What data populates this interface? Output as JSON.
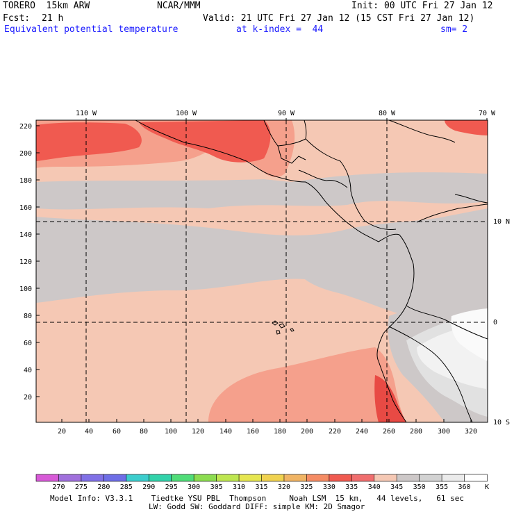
{
  "header": {
    "model": "TORERO  15km ARW",
    "center": "NCAR/MMM",
    "init": "Init: 00 UTC Fri 27 Jan 12",
    "fcst_label": "Fcst:",
    "fcst_value": "21 h",
    "valid": "Valid: 21 UTC Fri 27 Jan 12 (15 CST Fri 27 Jan 12)",
    "field": "Equivalent potential temperature",
    "level": "at k-index =  44",
    "smooth": "sm= 2"
  },
  "map": {
    "top_lon_labels": [
      "110 W",
      "100 W",
      "90 W",
      "80 W",
      "70 W"
    ],
    "right_lat_labels": [
      "10 N",
      "0",
      "10 S"
    ],
    "y_ticks": [
      "220",
      "200",
      "180",
      "160",
      "140",
      "120",
      "100",
      "80",
      "60",
      "40",
      "20"
    ],
    "x_ticks": [
      "20",
      "40",
      "60",
      "80",
      "100",
      "120",
      "140",
      "160",
      "180",
      "200",
      "220",
      "240",
      "260",
      "280",
      "300",
      "320"
    ]
  },
  "legend": {
    "values": [
      "270",
      "275",
      "280",
      "285",
      "290",
      "295",
      "300",
      "305",
      "310",
      "315",
      "320",
      "325",
      "330",
      "335",
      "340",
      "345",
      "350",
      "355",
      "360"
    ],
    "unit": "K",
    "colors": [
      "#d75ad7",
      "#a070dc",
      "#8070e6",
      "#6e6ee6",
      "#3ccdcd",
      "#32d2aa",
      "#50dc78",
      "#8cdc50",
      "#bee650",
      "#e6e650",
      "#f0d250",
      "#f0b464",
      "#f58c64",
      "#f05a50",
      "#f06e6e",
      "#f5c8b4",
      "#cdc8c8",
      "#d2d2d2",
      "#ebebeb",
      "#ffffff"
    ]
  },
  "footer": {
    "line1": "Model Info: V3.3.1    Tiedtke YSU PBL  Thompson     Noah LSM  15 km,   44 levels,   61 sec",
    "line2": "LW: Godd SW: Goddard DIFF: simple KM: 2D Smagor"
  }
}
